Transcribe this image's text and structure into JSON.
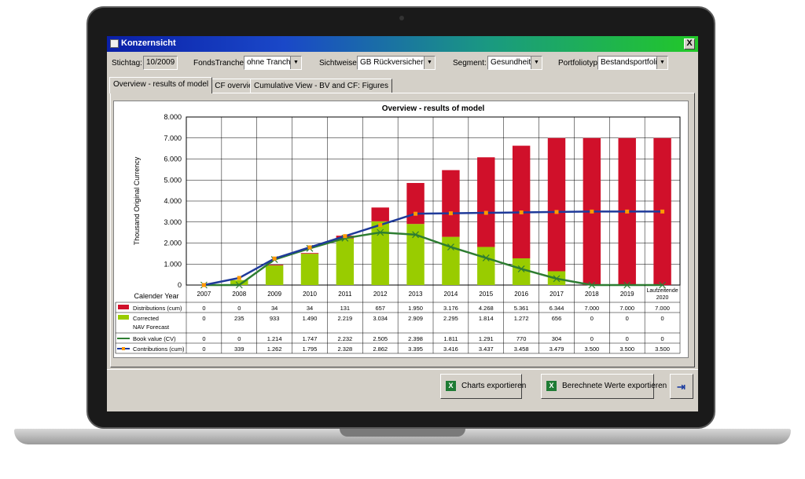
{
  "window": {
    "title": "Konzernsicht",
    "close_label": "X"
  },
  "filters": {
    "stichtag": {
      "label": "Stichtag:",
      "value": "10/2009"
    },
    "fondstranche": {
      "label": "FondsTranche:",
      "value": "ohne Tranche"
    },
    "sichtweise": {
      "label": "Sichtweise:",
      "value": "GB Rückversicherung"
    },
    "segment": {
      "label": "Segment:",
      "value": "Gesundheit"
    },
    "portfoliotyp": {
      "label": "Portfoliotyp:",
      "value": "Bestandsportfolio"
    }
  },
  "tabs": [
    {
      "label": "Overview - results of model",
      "active": true
    },
    {
      "label": "BV - CF overview",
      "active": false
    },
    {
      "label": "Cumulative View - BV and CF: Figures",
      "active": false
    }
  ],
  "buttons": {
    "charts_export": "Charts exportieren",
    "values_export": "Berechnete Werte exportieren"
  },
  "colors": {
    "distributions": "#d0102a",
    "nav": "#99cc00",
    "book_value": "#2e7d32",
    "contributions": "#1f3a9a",
    "contributions_marker": "#ff9900"
  },
  "chart_data": {
    "type": "bar",
    "title": "Overview - results of model",
    "ylabel": "Thousand Original Currency",
    "xlabel": "Calender Year",
    "ylim": [
      0,
      8000
    ],
    "yticks": [
      "0",
      "1.000",
      "2.000",
      "3.000",
      "4.000",
      "5.000",
      "6.000",
      "7.000",
      "8.000"
    ],
    "categories": [
      "2007",
      "2008",
      "2009",
      "2010",
      "2011",
      "2012",
      "2013",
      "2014",
      "2015",
      "2016",
      "2017",
      "2018",
      "2019",
      "Laufzeitende 2020"
    ],
    "grid": true,
    "series": [
      {
        "name": "Distributions (cum)",
        "kind": "bar",
        "values": [
          0,
          0,
          34,
          34,
          131,
          657,
          1950,
          3176,
          4268,
          5361,
          6344,
          7000,
          7000,
          7000
        ],
        "labels": [
          "0",
          "0",
          "34",
          "34",
          "131",
          "657",
          "1.950",
          "3.176",
          "4.268",
          "5.361",
          "6.344",
          "7.000",
          "7.000",
          "7.000"
        ]
      },
      {
        "name": "Corrected NAV Forecast",
        "kind": "bar",
        "values": [
          0,
          235,
          933,
          1490,
          2219,
          3034,
          2909,
          2295,
          1814,
          1272,
          656,
          0,
          0,
          0
        ],
        "labels": [
          "0",
          "235",
          "933",
          "1.490",
          "2.219",
          "3.034",
          "2.909",
          "2.295",
          "1.814",
          "1.272",
          "656",
          "0",
          "0",
          "0"
        ]
      },
      {
        "name": "Book value (CV)",
        "kind": "line",
        "values": [
          0,
          0,
          1214,
          1747,
          2232,
          2505,
          2398,
          1811,
          1291,
          770,
          304,
          0,
          0,
          0
        ],
        "labels": [
          "0",
          "0",
          "1.214",
          "1.747",
          "2.232",
          "2.505",
          "2.398",
          "1.811",
          "1.291",
          "770",
          "304",
          "0",
          "0",
          "0"
        ]
      },
      {
        "name": "Contributions (cum)",
        "kind": "line",
        "values": [
          0,
          339,
          1262,
          1795,
          2328,
          2862,
          3395,
          3416,
          3437,
          3458,
          3479,
          3500,
          3500,
          3500
        ],
        "labels": [
          "0",
          "339",
          "1.262",
          "1.795",
          "2.328",
          "2.862",
          "3.395",
          "3.416",
          "3.437",
          "3.458",
          "3.479",
          "3.500",
          "3.500",
          "3.500"
        ]
      }
    ]
  }
}
